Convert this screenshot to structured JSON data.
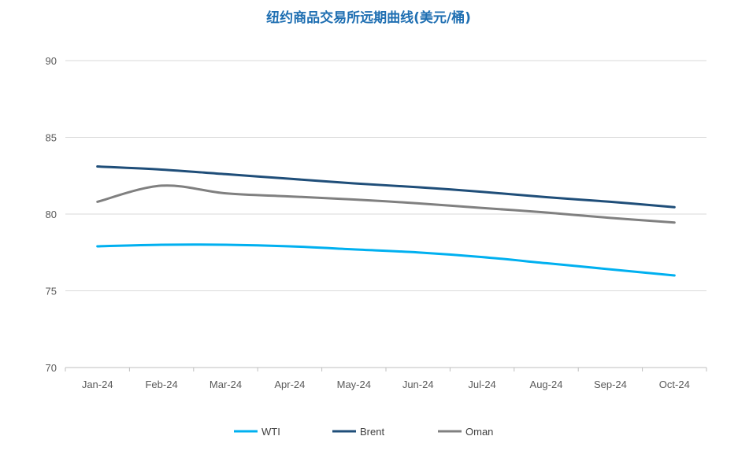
{
  "chart_data": {
    "type": "line",
    "title": "纽约商品交易所远期曲线(美元/桶)",
    "xlabel": "",
    "ylabel": "",
    "categories": [
      "Jan-24",
      "Feb-24",
      "Mar-24",
      "Apr-24",
      "May-24",
      "Jun-24",
      "Jul-24",
      "Aug-24",
      "Sep-24",
      "Oct-24"
    ],
    "ylim": [
      70,
      90
    ],
    "yticks": [
      70,
      75,
      80,
      85,
      90
    ],
    "grid": true,
    "legend_position": "bottom",
    "series": [
      {
        "name": "WTI",
        "color": "#00b0f0",
        "values": [
          77.9,
          78.0,
          78.0,
          77.9,
          77.7,
          77.5,
          77.2,
          76.8,
          76.4,
          76.0
        ]
      },
      {
        "name": "Brent",
        "color": "#1f4e79",
        "values": [
          83.1,
          82.9,
          82.6,
          82.3,
          82.0,
          81.75,
          81.45,
          81.1,
          80.8,
          80.45
        ]
      },
      {
        "name": "Oman",
        "color": "#808080",
        "values": [
          80.8,
          81.85,
          81.35,
          81.15,
          80.95,
          80.7,
          80.4,
          80.1,
          79.75,
          79.45
        ]
      }
    ]
  }
}
